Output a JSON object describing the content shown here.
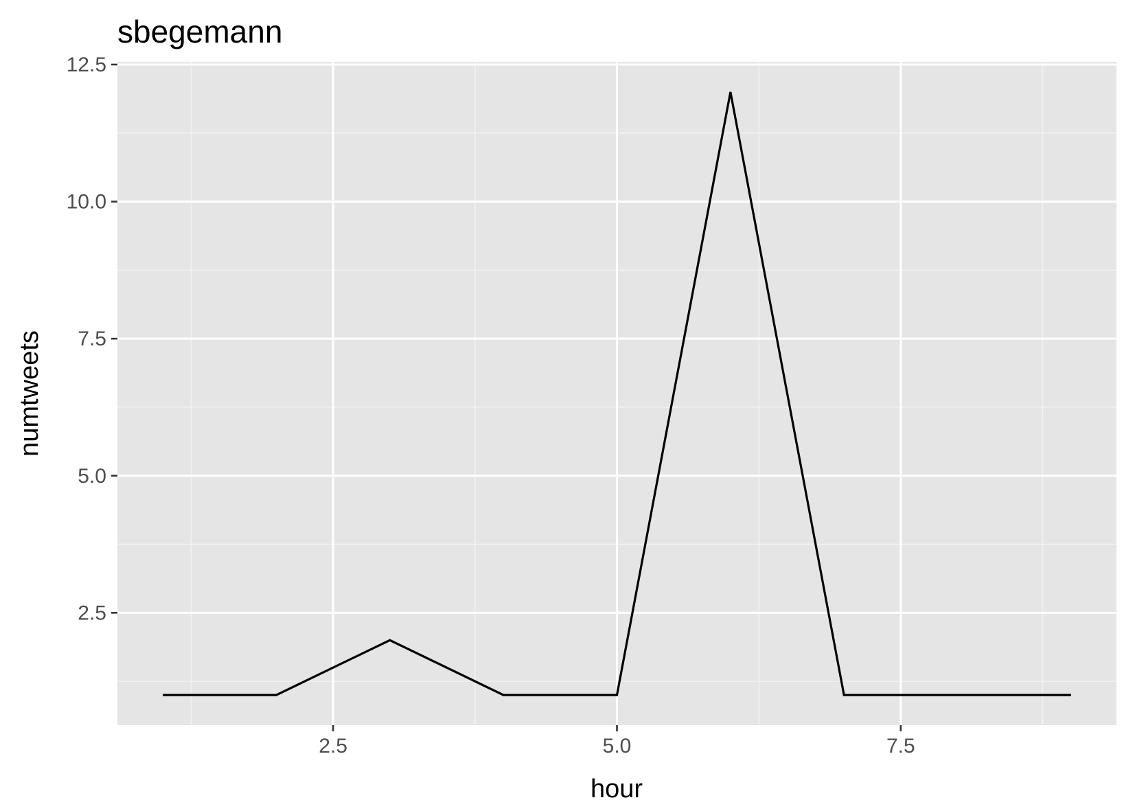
{
  "chart_data": {
    "type": "line",
    "title": "sbegemann",
    "xlabel": "hour",
    "ylabel": "numtweets",
    "xlim": [
      0.6,
      9.4
    ],
    "ylim": [
      0.45,
      12.55
    ],
    "x_ticks": [
      2.5,
      5.0,
      7.5
    ],
    "x_tick_labels": [
      "2.5",
      "5.0",
      "7.5"
    ],
    "y_ticks": [
      2.5,
      5.0,
      7.5,
      10.0,
      12.5
    ],
    "y_tick_labels": [
      "2.5",
      "5.0",
      "7.5",
      "10.0",
      "12.5"
    ],
    "grid": true,
    "legend": "none",
    "series": [
      {
        "x": [
          1,
          2,
          3,
          4,
          5,
          6,
          7,
          8,
          9
        ],
        "y": [
          1,
          1,
          2,
          1,
          1,
          12,
          1,
          1,
          1
        ]
      }
    ]
  },
  "colors": {
    "panel_background": "#e5e5e5",
    "grid_major": "#ffffff",
    "grid_minor": "#f2f2f2",
    "line": "#000000",
    "tick_text": "#4d4d4d",
    "axis_ticks": "#333333"
  }
}
